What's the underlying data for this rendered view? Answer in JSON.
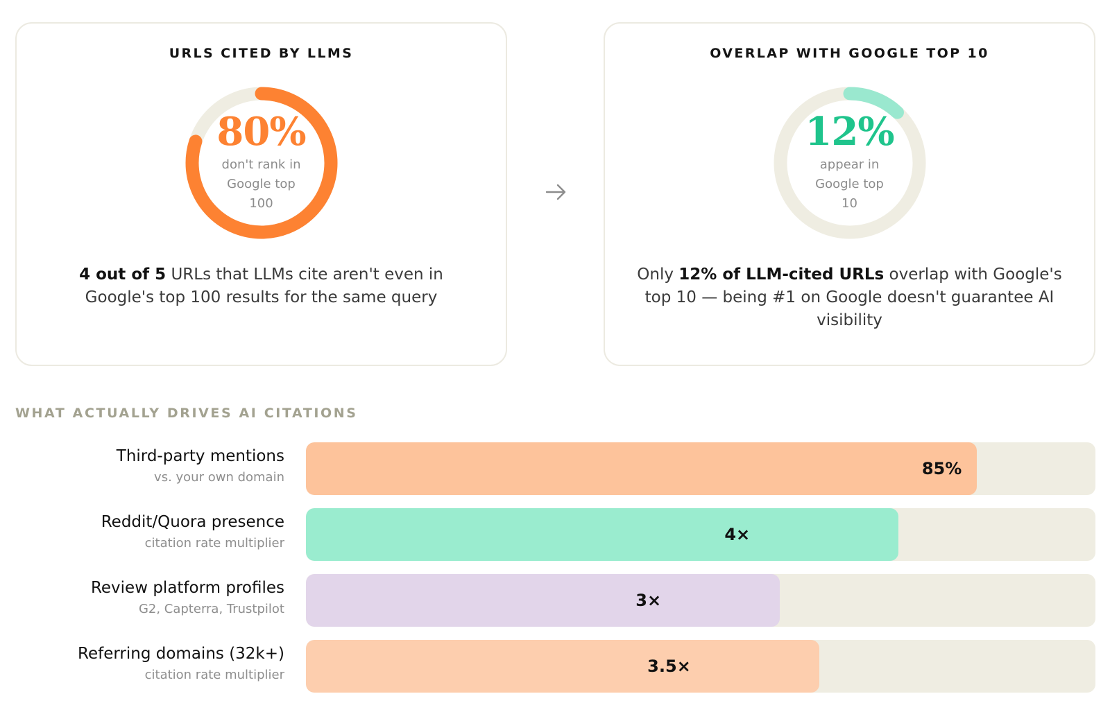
{
  "cards": [
    {
      "title": "URLS CITED BY LLMS",
      "value": "80%",
      "percent": 80,
      "caption": "don't rank in Google top 100",
      "color": "#fd8232",
      "desc_bold": "4 out of 5",
      "desc_text": " URLs that LLMs cite aren't even in Google's top 100 results for the same query"
    },
    {
      "title": "OVERLAP WITH GOOGLE TOP 10",
      "value": "12%",
      "percent": 12,
      "caption": "appear in Google top 10",
      "color": "#1fc48c",
      "arc_color": "#9ae8cf",
      "desc_pre": "Only ",
      "desc_bold": "12% of LLM-cited URLs",
      "desc_text": " overlap with Google's top 10 — being #1 on Google doesn't guarantee AI visibility"
    }
  ],
  "icons": {
    "arrow": "arrow-right-icon"
  },
  "colors": {
    "track": "#efede2",
    "ring_track": "#efede2"
  },
  "chart_data": {
    "type": "bar",
    "title": "WHAT ACTUALLY DRIVES AI CITATIONS",
    "categories": [
      "Third-party mentions",
      "Reddit/Quora presence",
      "Review platform profiles",
      "Referring domains (32k+)"
    ],
    "subtitles": [
      "vs. your own domain",
      "citation rate multiplier",
      "G2, Capterra, Trustpilot",
      "citation rate multiplier"
    ],
    "labels": [
      "85%",
      "4×",
      "3×",
      "3.5×"
    ],
    "fill_percent": [
      85,
      75,
      60,
      65
    ],
    "colors": [
      "#fdc39b",
      "#9aeccf",
      "#e2d5ea",
      "#fdceae"
    ]
  }
}
